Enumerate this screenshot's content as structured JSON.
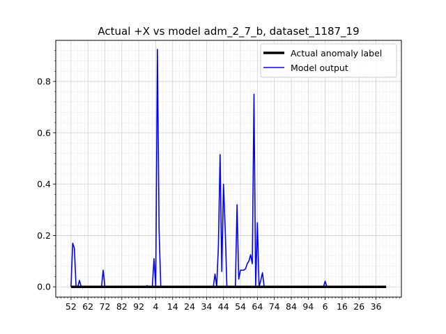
{
  "chart_data": {
    "type": "line",
    "title": "Actual +X vs model adm_2_7_b, dataset_1187_19",
    "xlabel": "",
    "ylabel": "",
    "x_tick_labels": [
      "52",
      "62",
      "72",
      "82",
      "92",
      "4",
      "14",
      "24",
      "34",
      "44",
      "54",
      "64",
      "74",
      "84",
      "94",
      "6",
      "16",
      "26",
      "36"
    ],
    "y_ticks": [
      0.0,
      0.2,
      0.4,
      0.6,
      0.8
    ],
    "y_tick_labels": [
      "0.0",
      "0.2",
      "0.4",
      "0.6",
      "0.8"
    ],
    "xlim": [
      -9,
      195
    ],
    "ylim": [
      -0.04,
      0.96
    ],
    "grid": true,
    "legend_position": "top-right",
    "series": [
      {
        "name": "Actual anomaly label",
        "color": "#000000",
        "x": [
          0,
          186
        ],
        "values": [
          0,
          0
        ]
      },
      {
        "name": "Model output",
        "color": "#0000ff",
        "x": [
          0,
          1,
          2,
          3,
          4,
          5,
          6,
          7,
          8,
          9,
          10,
          18,
          19,
          20,
          21,
          22,
          44,
          45,
          46,
          47,
          48,
          49,
          50,
          51,
          52,
          53,
          84,
          85,
          86,
          87,
          88,
          89,
          90,
          91,
          92,
          93,
          94,
          95,
          96,
          97,
          98,
          99,
          100,
          101,
          102,
          103,
          104,
          105,
          106,
          107,
          108,
          109,
          110,
          111,
          112,
          113,
          114,
          115,
          116,
          117,
          118,
          119,
          120,
          121,
          149,
          150,
          151,
          152,
          186
        ],
        "values": [
          0,
          0.17,
          0.15,
          0,
          0,
          0.025,
          0,
          0,
          0,
          0,
          0,
          0,
          0.065,
          0,
          0,
          0,
          0,
          0.005,
          0,
          0,
          0,
          0.11,
          0,
          0.925,
          0.22,
          0,
          0,
          0.05,
          0,
          0.16,
          0.515,
          0.06,
          0.4,
          0.23,
          0,
          0,
          0,
          0,
          0,
          0,
          0.32,
          0.03,
          0.065,
          0.065,
          0.065,
          0.07,
          0.09,
          0.1,
          0.125,
          0.09,
          0.75,
          0,
          0.25,
          0,
          0.025,
          0.055,
          0,
          0,
          0,
          0,
          0,
          0,
          0,
          0,
          0,
          0.022,
          0,
          0,
          0
        ]
      }
    ]
  }
}
